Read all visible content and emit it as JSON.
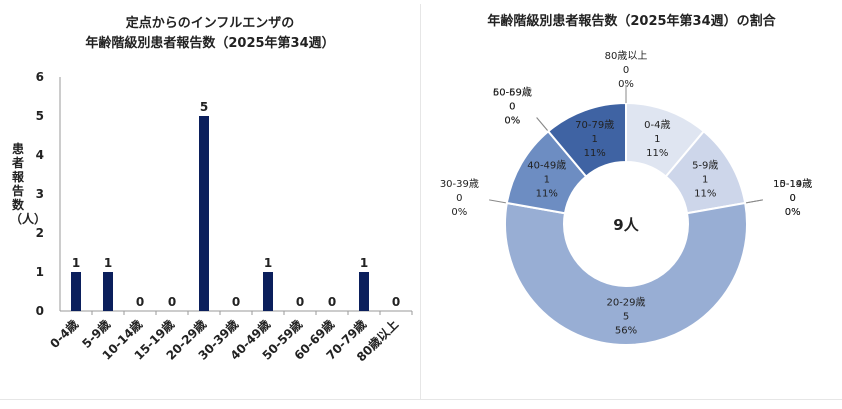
{
  "chart_data": [
    {
      "type": "bar",
      "title": [
        "定点からのインフルエンザの",
        "年齢階級別患者報告数（2025年第34週）"
      ],
      "xlabel": "",
      "ylabel": "患者報告数（人）",
      "categories": [
        "0-4歳",
        "5-9歳",
        "10-14歳",
        "15-19歳",
        "20-29歳",
        "30-39歳",
        "40-49歳",
        "50-59歳",
        "60-69歳",
        "70-79歳",
        "80歳以上"
      ],
      "values": [
        1,
        1,
        0,
        0,
        5,
        0,
        1,
        0,
        0,
        1,
        0
      ],
      "ylim": [
        0,
        6
      ],
      "yticks": [
        "0",
        "1",
        "2",
        "3",
        "4",
        "5",
        "6"
      ],
      "data_labels": [
        "1",
        "1",
        "0",
        "0",
        "5",
        "0",
        "1",
        "0",
        "0",
        "1",
        "0"
      ],
      "grid": false,
      "bar_color": "#0b1f5c"
    },
    {
      "type": "pie",
      "variant": "donut",
      "title": "年齢階級別患者報告数（2025年第34週）の割合",
      "center_label": "9人",
      "slices": [
        {
          "label": "0-4歳",
          "count": "1",
          "percent": "11%",
          "value": 1,
          "color": "#dfe5f1"
        },
        {
          "label": "5-9歳",
          "count": "1",
          "percent": "11%",
          "value": 1,
          "color": "#cdd6ea"
        },
        {
          "label": "10-14歳",
          "count": "0",
          "percent": "0%",
          "value": 0,
          "color": "#bfcbe3"
        },
        {
          "label": "15-19歳",
          "count": "0",
          "percent": "0%",
          "value": 0,
          "color": "#b2c0dd"
        },
        {
          "label": "20-29歳",
          "count": "5",
          "percent": "56%",
          "value": 5,
          "color": "#98aed4"
        },
        {
          "label": "30-39歳",
          "count": "0",
          "percent": "0%",
          "value": 0,
          "color": "#86a0cc"
        },
        {
          "label": "40-49歳",
          "count": "1",
          "percent": "11%",
          "value": 1,
          "color": "#6d8dc2"
        },
        {
          "label": "50-59歳",
          "count": "0",
          "percent": "0%",
          "value": 0,
          "color": "#5a7db7"
        },
        {
          "label": "60-69歳",
          "count": "0",
          "percent": "0%",
          "value": 0,
          "color": "#4d72ad"
        },
        {
          "label": "70-79歳",
          "count": "1",
          "percent": "11%",
          "value": 1,
          "color": "#3f63a3"
        },
        {
          "label": "80歳以上",
          "count": "0",
          "percent": "0%",
          "value": 0,
          "color": "#355996"
        }
      ]
    }
  ]
}
